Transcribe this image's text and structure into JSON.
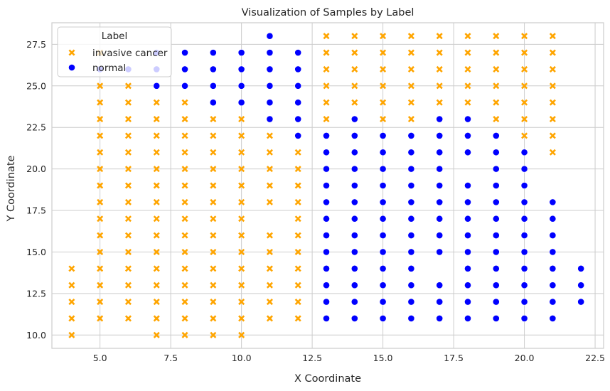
{
  "chart_data": {
    "type": "scatter",
    "title": "Visualization of Samples by Label",
    "xlabel": "X Coordinate",
    "ylabel": "Y Coordinate",
    "xlim": [
      3.3,
      22.8
    ],
    "ylim": [
      9.2,
      28.8
    ],
    "xticks": [
      {
        "value": 5.0,
        "label": "5.0"
      },
      {
        "value": 7.5,
        "label": "7.5"
      },
      {
        "value": 10.0,
        "label": "10.0"
      },
      {
        "value": 12.5,
        "label": "12.5"
      },
      {
        "value": 15.0,
        "label": "15.0"
      },
      {
        "value": 17.5,
        "label": "17.5"
      },
      {
        "value": 20.0,
        "label": "20.0"
      },
      {
        "value": 22.5,
        "label": "22.5"
      }
    ],
    "yticks": [
      {
        "value": 10.0,
        "label": "10.0"
      },
      {
        "value": 12.5,
        "label": "12.5"
      },
      {
        "value": 15.0,
        "label": "15.0"
      },
      {
        "value": 17.5,
        "label": "17.5"
      },
      {
        "value": 20.0,
        "label": "20.0"
      },
      {
        "value": 22.5,
        "label": "22.5"
      },
      {
        "value": 25.0,
        "label": "25.0"
      },
      {
        "value": 27.5,
        "label": "27.5"
      }
    ],
    "grid": true,
    "legend": {
      "title": "Label",
      "position": "top-left"
    },
    "series": [
      {
        "name": "invasive cancer",
        "marker": "x",
        "color": "#FFA500",
        "columns": [
          {
            "x": 4,
            "y": [
              10,
              11,
              12,
              13,
              14
            ]
          },
          {
            "x": 5,
            "y": [
              11,
              12,
              13,
              14,
              15,
              16,
              17,
              18,
              19,
              20,
              21,
              22,
              23,
              24,
              25,
              27
            ]
          },
          {
            "x": 6,
            "y": [
              11,
              12,
              13,
              14,
              15,
              16,
              17,
              18,
              19,
              20,
              21,
              22,
              23,
              24,
              25
            ]
          },
          {
            "x": 7,
            "y": [
              10,
              11,
              12,
              13,
              14,
              15,
              16,
              17,
              18,
              19,
              20,
              21,
              22,
              23,
              24
            ]
          },
          {
            "x": 8,
            "y": [
              10,
              11,
              12,
              13,
              14,
              15,
              16,
              17,
              18,
              19,
              20,
              21,
              22,
              23,
              24
            ]
          },
          {
            "x": 9,
            "y": [
              10,
              11,
              12,
              13,
              14,
              15,
              16,
              17,
              18,
              19,
              20,
              21,
              22,
              23
            ]
          },
          {
            "x": 10,
            "y": [
              10,
              11,
              12,
              13,
              14,
              15,
              16,
              17,
              18,
              19,
              20,
              21,
              22,
              23
            ]
          },
          {
            "x": 11,
            "y": [
              11,
              12,
              13,
              14,
              15,
              16,
              18,
              19,
              20,
              21,
              22
            ]
          },
          {
            "x": 12,
            "y": [
              11,
              12,
              13,
              14,
              15,
              16,
              17,
              18,
              19,
              20,
              21
            ]
          },
          {
            "x": 13,
            "y": [
              23,
              24,
              25,
              26,
              27,
              28
            ]
          },
          {
            "x": 14,
            "y": [
              24,
              25,
              26,
              27,
              28
            ]
          },
          {
            "x": 15,
            "y": [
              23,
              24,
              25,
              26,
              27,
              28
            ]
          },
          {
            "x": 16,
            "y": [
              23,
              24,
              25,
              26,
              27,
              28
            ]
          },
          {
            "x": 17,
            "y": [
              24,
              25,
              26,
              27,
              28
            ]
          },
          {
            "x": 18,
            "y": [
              24,
              25,
              26,
              27,
              28
            ]
          },
          {
            "x": 19,
            "y": [
              23,
              24,
              25,
              26,
              27,
              28
            ]
          },
          {
            "x": 20,
            "y": [
              22,
              23,
              24,
              25,
              26,
              27,
              28
            ]
          },
          {
            "x": 21,
            "y": [
              21,
              22,
              23,
              24,
              25,
              26,
              27,
              28
            ]
          }
        ]
      },
      {
        "name": "normal",
        "marker": "o",
        "color": "#0000FF",
        "columns": [
          {
            "x": 5,
            "y": [
              26
            ]
          },
          {
            "x": 6,
            "y": [
              26
            ]
          },
          {
            "x": 7,
            "y": [
              25,
              26,
              27
            ]
          },
          {
            "x": 8,
            "y": [
              25,
              26,
              27
            ]
          },
          {
            "x": 9,
            "y": [
              24,
              25,
              26,
              27
            ]
          },
          {
            "x": 10,
            "y": [
              24,
              25,
              26,
              27
            ]
          },
          {
            "x": 11,
            "y": [
              23,
              24,
              25,
              26,
              27,
              28
            ]
          },
          {
            "x": 12,
            "y": [
              22,
              23,
              24,
              25,
              26,
              27
            ]
          },
          {
            "x": 13,
            "y": [
              11,
              12,
              13,
              14,
              15,
              16,
              17,
              18,
              19,
              20,
              21,
              22
            ]
          },
          {
            "x": 14,
            "y": [
              11,
              12,
              13,
              14,
              15,
              16,
              17,
              18,
              19,
              20,
              21,
              22,
              23
            ]
          },
          {
            "x": 15,
            "y": [
              11,
              12,
              13,
              14,
              15,
              16,
              17,
              18,
              19,
              20,
              21,
              22
            ]
          },
          {
            "x": 16,
            "y": [
              11,
              12,
              13,
              14,
              15,
              16,
              17,
              18,
              19,
              20,
              21,
              22
            ]
          },
          {
            "x": 17,
            "y": [
              11,
              12,
              13,
              15,
              16,
              17,
              18,
              19,
              20,
              21,
              22,
              23
            ]
          },
          {
            "x": 18,
            "y": [
              11,
              12,
              13,
              14,
              15,
              16,
              17,
              18,
              19,
              21,
              22,
              23
            ]
          },
          {
            "x": 19,
            "y": [
              11,
              12,
              13,
              14,
              15,
              16,
              17,
              18,
              19,
              20,
              21,
              22
            ]
          },
          {
            "x": 20,
            "y": [
              11,
              12,
              13,
              14,
              15,
              16,
              17,
              18,
              19,
              20,
              21
            ]
          },
          {
            "x": 21,
            "y": [
              11,
              12,
              13,
              14,
              15,
              16,
              17,
              18
            ]
          },
          {
            "x": 22,
            "y": [
              12,
              13,
              14
            ]
          }
        ]
      }
    ]
  }
}
